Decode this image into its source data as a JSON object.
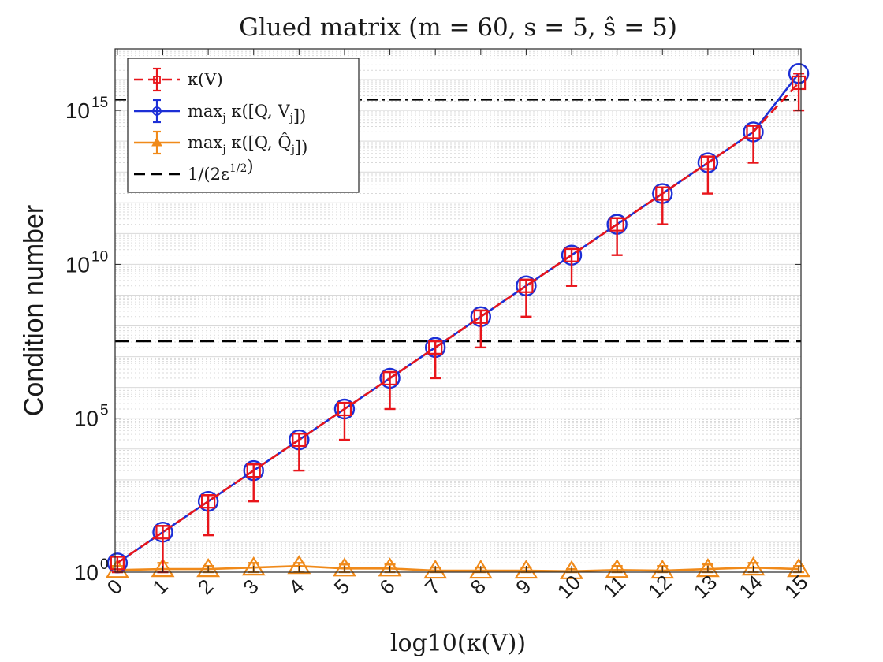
{
  "chart_data": {
    "type": "line",
    "title": "Glued matrix (m = 60,  s = 5,  ŝ = 5)",
    "xlabel": "log10(κ(V))",
    "ylabel": "Condition number",
    "yscale": "log",
    "ylim_exponent": [
      0,
      17
    ],
    "xlim": [
      -0.05,
      15.05
    ],
    "x": [
      0,
      1,
      2,
      3,
      4,
      5,
      6,
      7,
      8,
      9,
      10,
      11,
      12,
      13,
      14,
      15
    ],
    "xtick_labels": [
      "0",
      "1",
      "2",
      "3",
      "4",
      "5",
      "6",
      "7",
      "8",
      "9",
      "10",
      "11",
      "12",
      "13",
      "14",
      "15"
    ],
    "ytick_labels": [
      {
        "base": "10",
        "exp": "0",
        "exponent": 0
      },
      {
        "base": "10",
        "exp": "5",
        "exponent": 5
      },
      {
        "base": "10",
        "exp": "10",
        "exponent": 10
      },
      {
        "base": "10",
        "exp": "15",
        "exponent": 15
      }
    ],
    "series": [
      {
        "name": "κ(V)",
        "color": "#e8151b",
        "line": "dashed",
        "marker": "square",
        "log10_values": [
          0.3,
          1.3,
          2.3,
          3.3,
          4.3,
          5.3,
          6.3,
          7.3,
          8.3,
          9.3,
          10.3,
          11.3,
          12.3,
          13.3,
          14.3,
          15.9
        ],
        "log10_err_low": [
          0.0,
          0.0,
          1.2,
          2.3,
          3.3,
          4.3,
          5.3,
          6.3,
          7.3,
          8.3,
          9.3,
          10.3,
          11.3,
          12.3,
          13.3,
          15.0
        ],
        "log10_err_high": [
          0.5,
          1.5,
          2.5,
          3.5,
          4.5,
          5.5,
          6.5,
          7.5,
          8.5,
          9.5,
          10.5,
          11.5,
          12.5,
          13.5,
          14.5,
          16.2
        ]
      },
      {
        "name": "max_j κ([Q, V_j])",
        "color": "#1c2fd6",
        "line": "solid",
        "marker": "circle",
        "log10_values": [
          0.3,
          1.3,
          2.3,
          3.3,
          4.3,
          5.3,
          6.3,
          7.3,
          8.3,
          9.3,
          10.3,
          11.3,
          12.3,
          13.3,
          14.3,
          16.2
        ]
      },
      {
        "name": "max_j κ([Q, Q̂_j])",
        "color": "#f08a1a",
        "line": "solid",
        "marker": "triangle",
        "log10_values": [
          0.07,
          0.1,
          0.1,
          0.15,
          0.2,
          0.12,
          0.12,
          0.05,
          0.05,
          0.05,
          0.03,
          0.07,
          0.05,
          0.1,
          0.15,
          0.1
        ],
        "log10_err_low": [
          -0.1,
          -0.1,
          0.0,
          0.0,
          0.0,
          0.0,
          0.0,
          -0.05,
          -0.05,
          -0.05,
          -0.05,
          -0.05,
          -0.15,
          -0.1,
          0.0,
          0.0
        ],
        "log10_err_high": [
          0.2,
          0.3,
          0.2,
          0.3,
          0.3,
          0.25,
          0.25,
          0.15,
          0.15,
          0.15,
          0.1,
          0.2,
          0.2,
          0.25,
          0.3,
          0.2
        ]
      }
    ],
    "reference_lines": [
      {
        "name": "1/(2ε^{1/2})",
        "log10_value": 7.5,
        "style": "dashed",
        "color": "#000000",
        "in_legend": true
      },
      {
        "name": "",
        "log10_value": 15.35,
        "style": "dashdot",
        "color": "#000000",
        "in_legend": false
      }
    ],
    "legend": {
      "placement": "top-left",
      "entries": [
        {
          "main": "κ(V)",
          "sub": ""
        },
        {
          "main": "max",
          "sub": "j",
          "rest": " κ([Q, V",
          "rest_sub": "j",
          "tail": "])"
        },
        {
          "main": "max",
          "sub": "j",
          "rest": " κ([Q, Q̂",
          "rest_sub": "j",
          "tail": "])"
        },
        {
          "main": "1/(2ε",
          "sup": "1/2",
          "tail": ")"
        }
      ]
    },
    "grid": "y-minor-dotted"
  }
}
